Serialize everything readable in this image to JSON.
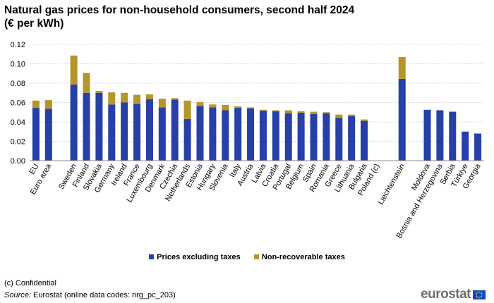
{
  "title_line1": "Natural gas prices for non-household consumers, second half 2024",
  "title_line2": "(€ per kWh)",
  "colors": {
    "base": "#2640a8",
    "tax": "#b5962b",
    "grid": "#cccccc",
    "axis": "#8c8c8c",
    "logo_blue": "#0e47cb",
    "logo_star": "#ffdd00"
  },
  "legend": {
    "base_label": "Prices excluding taxes",
    "tax_label": "Non-recoverable taxes"
  },
  "footnote": "(c) Confidential",
  "source": {
    "prefix": "Source:",
    "text": " Eurostat (online data codes: nrg_pc_203)"
  },
  "logo": {
    "text": "eurostat"
  },
  "chart_data": {
    "type": "bar",
    "stacked": true,
    "title": "Natural gas prices for non-household consumers, second half 2024 (€ per kWh)",
    "xlabel": "",
    "ylabel": "",
    "ylim": [
      0,
      0.12
    ],
    "yticks": [
      0.0,
      0.02,
      0.04,
      0.06,
      0.08,
      0.1,
      0.12
    ],
    "ytick_labels": [
      "0.00",
      "0.02",
      "0.04",
      "0.06",
      "0.08",
      "0.10",
      "0.12"
    ],
    "grid": true,
    "legend_position": "bottom",
    "categories": [
      "EU",
      "Euro area",
      "",
      "Sweden",
      "Finland",
      "Slovakia",
      "Germany",
      "Ireland",
      "France",
      "Luxembourg",
      "Denmark",
      "Czechia",
      "Netherlands",
      "Estonia",
      "Hungary",
      "Slovenia",
      "Italy",
      "Austria",
      "Latvia",
      "Croatia",
      "Portugal",
      "Belgium",
      "Spain",
      "Romania",
      "Greece",
      "Lithuania",
      "Bulgaria",
      "Poland (c)",
      "",
      "Liechtenstein",
      "",
      "Moldova",
      "Bosnia and Herzegovina",
      "Serbia",
      "Türkiye",
      "Georgia"
    ],
    "series": [
      {
        "name": "Prices excluding taxes",
        "values": [
          0.0545,
          0.0535,
          null,
          0.0785,
          0.07,
          0.07,
          0.058,
          0.06,
          0.0585,
          0.0635,
          0.055,
          0.063,
          0.043,
          0.0565,
          0.055,
          0.052,
          0.0545,
          0.054,
          0.0515,
          0.051,
          0.049,
          0.0495,
          0.048,
          0.049,
          0.044,
          0.046,
          0.041,
          null,
          null,
          0.0845,
          null,
          0.0525,
          0.052,
          0.0505,
          0.03,
          0.028
        ]
      },
      {
        "name": "Non-recoverable taxes",
        "values": [
          0.0075,
          0.009,
          null,
          0.03,
          0.0205,
          0.002,
          0.0125,
          0.01,
          0.0095,
          0.005,
          0.009,
          0.0015,
          0.019,
          0.004,
          0.003,
          0.0055,
          0.0015,
          0.001,
          0.001,
          0.001,
          0.003,
          0.0015,
          0.0025,
          0.001,
          0.0035,
          0.0015,
          0.0015,
          null,
          null,
          0.0225,
          null,
          0.0,
          0.0,
          0.0,
          0.0,
          0.0
        ]
      }
    ]
  }
}
